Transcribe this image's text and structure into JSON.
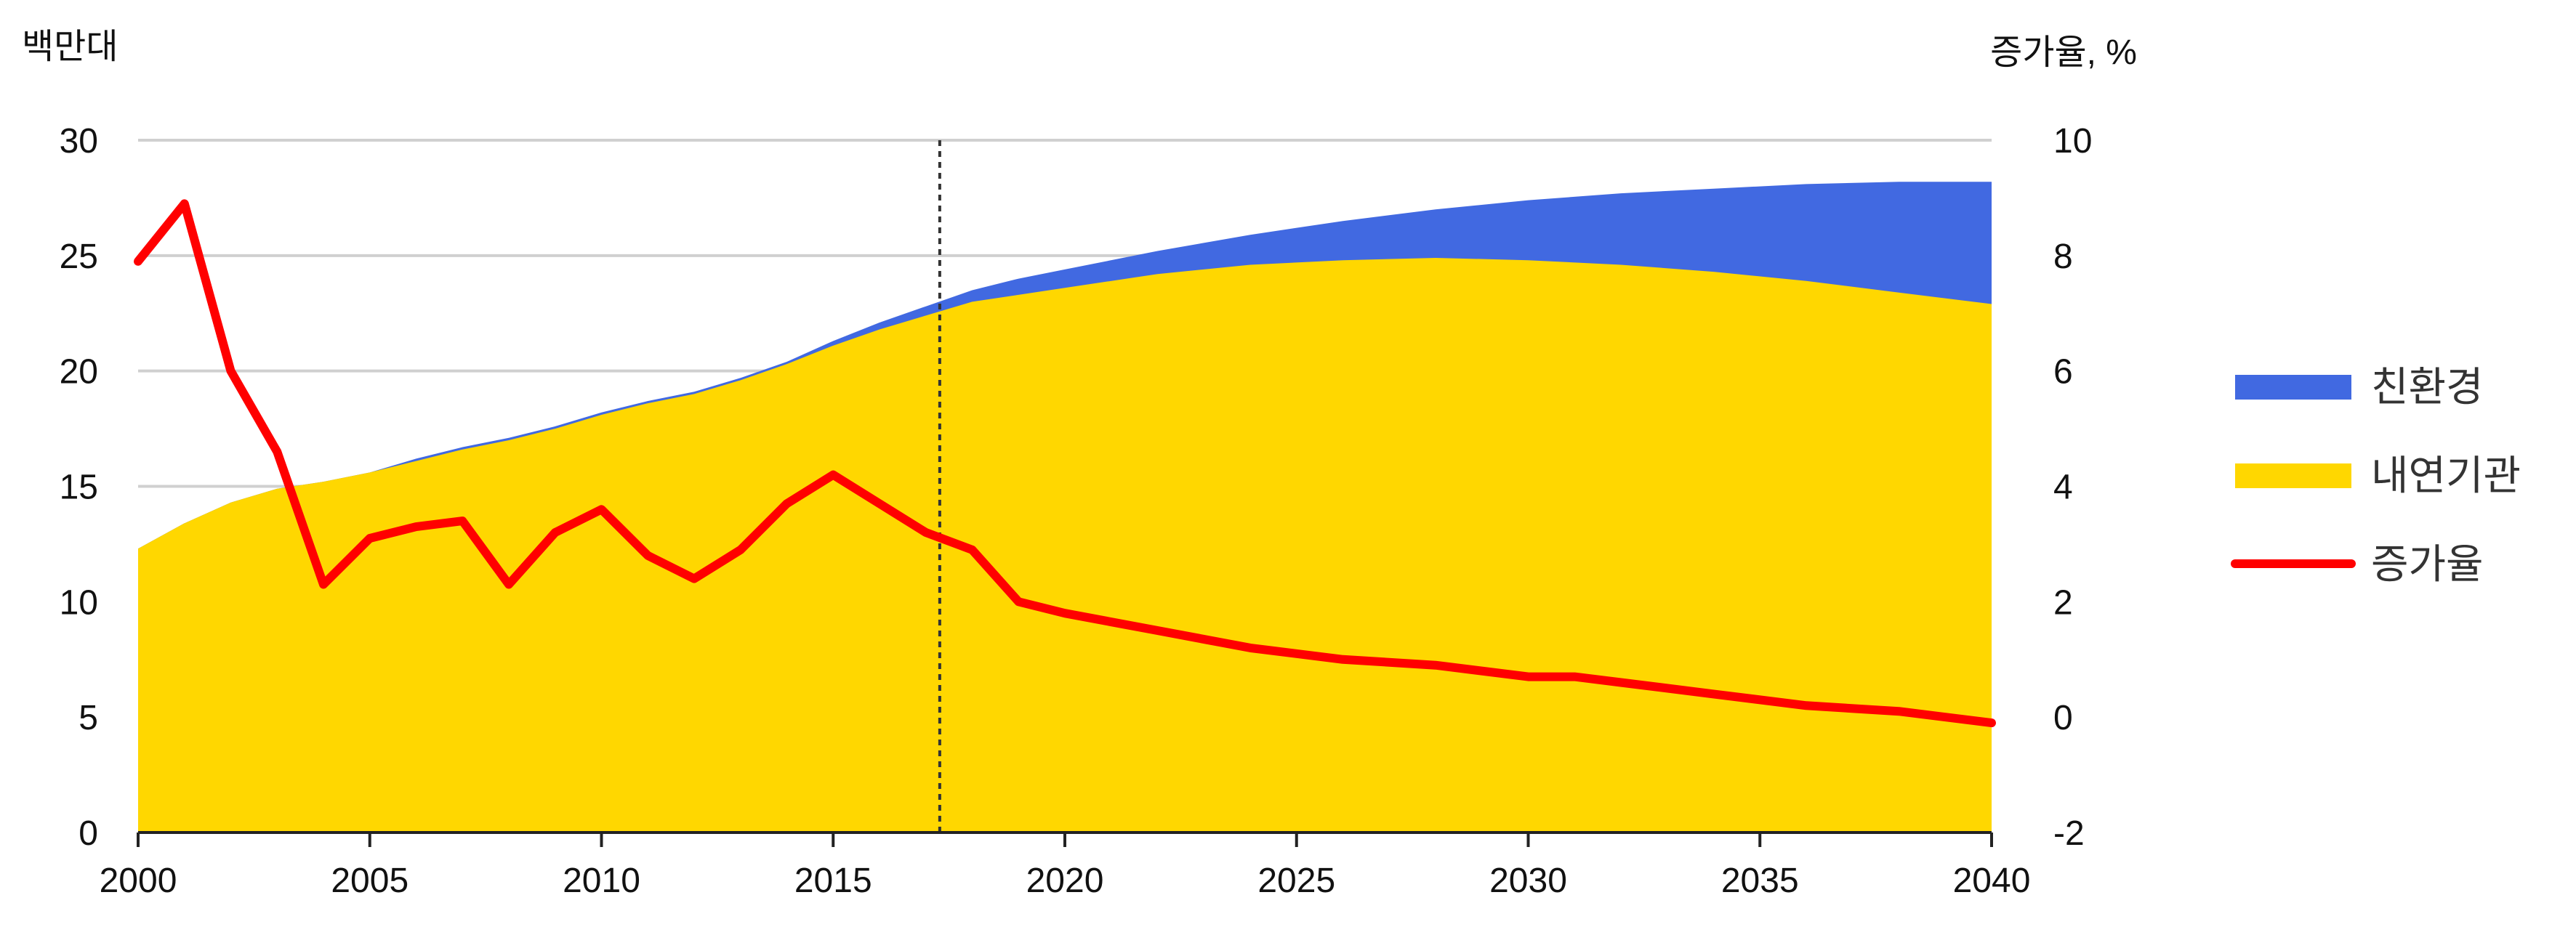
{
  "chart_data": {
    "type": "area",
    "y_left_label": "백만대",
    "y_right_label": "증가율, %",
    "x_ticks": [
      2000,
      2005,
      2010,
      2015,
      2020,
      2025,
      2030,
      2035,
      2040
    ],
    "y_left_ticks": [
      0,
      5,
      10,
      15,
      20,
      25,
      30
    ],
    "y_right_ticks": [
      -2,
      0,
      2,
      4,
      6,
      8,
      10
    ],
    "x_range": [
      2000,
      2040
    ],
    "y_left_range": [
      0,
      30
    ],
    "y_right_range": [
      -2,
      10
    ],
    "forecast_divider_year": 2017.3,
    "grid": true,
    "legend_position": "right",
    "colors": {
      "eco": "#4169E1",
      "ice": "#FFD700",
      "growth": "#FF0000",
      "grid": "#D0D0D0",
      "divider": "#333333"
    },
    "series": [
      {
        "name": "친환경",
        "axis": "left",
        "kind": "stacked-area-top",
        "x": [
          2000,
          2001,
          2002,
          2003,
          2004,
          2005,
          2006,
          2007,
          2008,
          2009,
          2010,
          2011,
          2012,
          2013,
          2014,
          2015,
          2016,
          2017,
          2018,
          2019,
          2020,
          2022,
          2024,
          2026,
          2028,
          2030,
          2032,
          2034,
          2036,
          2038,
          2040
        ],
        "values": [
          12.3,
          13.4,
          14.3,
          14.9,
          15.2,
          15.6,
          16.2,
          16.7,
          17.1,
          17.6,
          18.2,
          18.7,
          19.1,
          19.7,
          20.4,
          21.3,
          22.1,
          22.8,
          23.5,
          24.0,
          24.4,
          25.2,
          25.9,
          26.5,
          27.0,
          27.4,
          27.7,
          27.9,
          28.1,
          28.2,
          28.2
        ]
      },
      {
        "name": "내연기관",
        "axis": "left",
        "kind": "area",
        "x": [
          2000,
          2001,
          2002,
          2003,
          2004,
          2005,
          2006,
          2007,
          2008,
          2009,
          2010,
          2011,
          2012,
          2013,
          2014,
          2015,
          2016,
          2017,
          2018,
          2020,
          2022,
          2024,
          2026,
          2028,
          2030,
          2032,
          2034,
          2036,
          2038,
          2040
        ],
        "values": [
          12.3,
          13.4,
          14.3,
          14.9,
          15.2,
          15.6,
          16.1,
          16.6,
          17.0,
          17.5,
          18.1,
          18.6,
          19.0,
          19.6,
          20.3,
          21.1,
          21.8,
          22.4,
          23.0,
          23.6,
          24.2,
          24.6,
          24.8,
          24.9,
          24.8,
          24.6,
          24.3,
          23.9,
          23.4,
          22.9
        ]
      },
      {
        "name": "증가율",
        "axis": "right",
        "kind": "line",
        "x": [
          2000,
          2001,
          2002,
          2003,
          2004,
          2005,
          2006,
          2007,
          2008,
          2009,
          2010,
          2011,
          2012,
          2013,
          2014,
          2015,
          2016,
          2017,
          2018,
          2019,
          2020,
          2022,
          2024,
          2026,
          2028,
          2030,
          2031,
          2032,
          2034,
          2036,
          2038,
          2040
        ],
        "values": [
          7.9,
          8.9,
          6.0,
          4.6,
          2.3,
          3.1,
          3.3,
          3.4,
          2.3,
          3.2,
          3.6,
          2.8,
          2.4,
          2.9,
          3.7,
          4.2,
          3.7,
          3.2,
          2.9,
          2.0,
          1.8,
          1.5,
          1.2,
          1.0,
          0.9,
          0.7,
          0.7,
          0.6,
          0.4,
          0.2,
          0.1,
          -0.1
        ]
      }
    ]
  }
}
